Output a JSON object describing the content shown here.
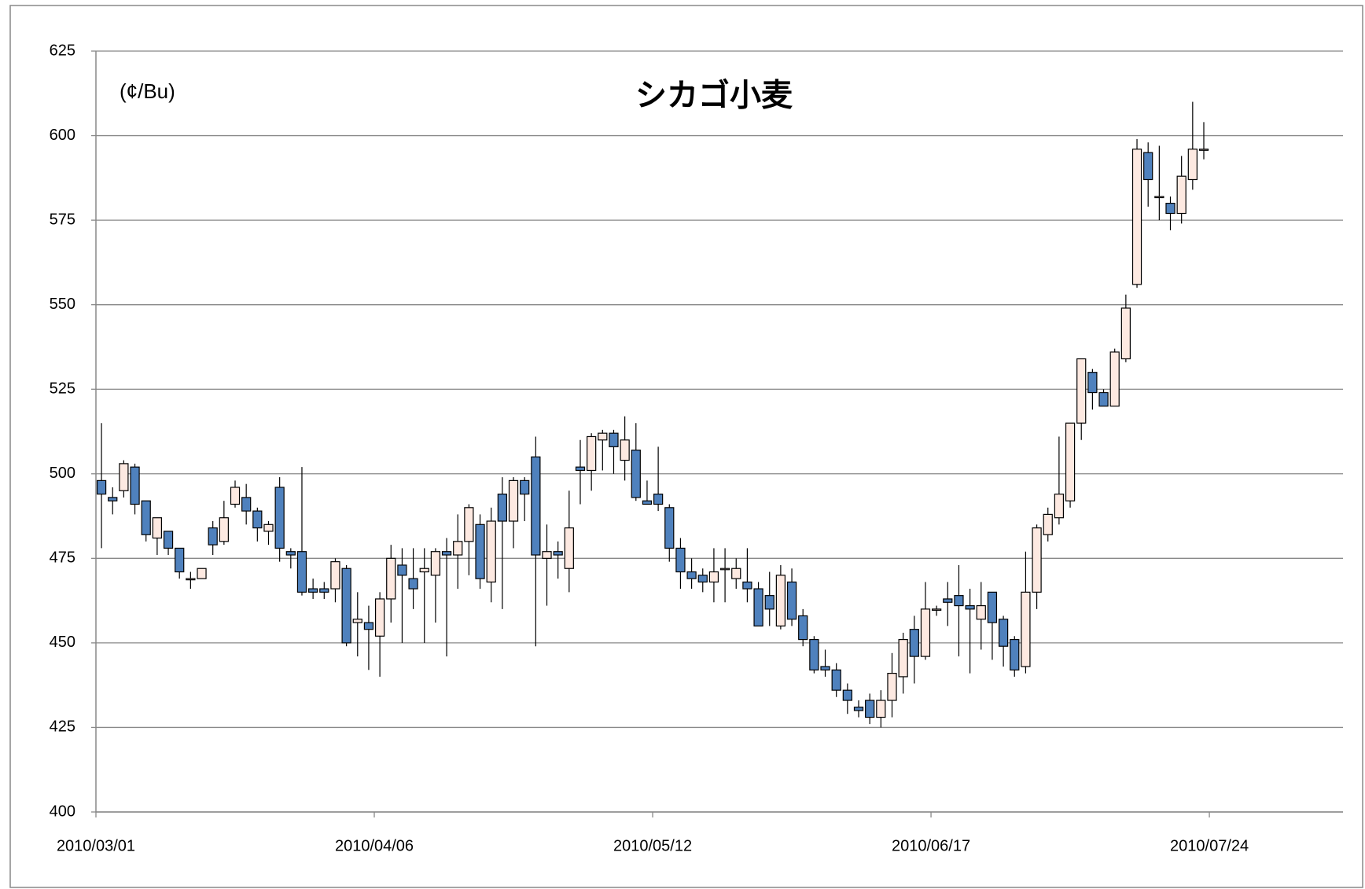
{
  "chart_data": {
    "type": "candlestick",
    "title": "シカゴ小麦",
    "annotation": "(¢/Bu)",
    "categories": [
      "2010/03/01",
      null,
      null,
      null,
      null,
      null,
      null,
      null,
      null,
      null,
      null,
      null,
      null,
      null,
      null,
      null,
      null,
      null,
      null,
      null,
      null,
      null,
      null,
      null,
      null,
      "2010/04/06",
      null,
      null,
      null,
      null,
      null,
      null,
      null,
      null,
      null,
      null,
      null,
      null,
      null,
      null,
      null,
      null,
      null,
      null,
      null,
      null,
      null,
      null,
      null,
      null,
      "2010/05/12",
      null,
      null,
      null,
      null,
      null,
      null,
      null,
      null,
      null,
      null,
      null,
      null,
      null,
      null,
      null,
      null,
      null,
      null,
      null,
      null,
      null,
      null,
      null,
      null,
      "2010/06/17",
      null,
      null,
      null,
      null,
      null,
      null,
      null,
      null,
      null,
      null,
      null,
      null,
      null,
      null,
      null,
      null,
      null,
      null,
      null,
      null,
      null,
      null,
      null,
      null,
      "2010/07/24",
      null,
      null,
      null,
      null,
      null,
      null,
      null,
      null,
      null,
      null,
      null
    ],
    "open": [
      498,
      493,
      495,
      502,
      492,
      481,
      483,
      478,
      469,
      469,
      484,
      480,
      491,
      493,
      489,
      483,
      496,
      477,
      477,
      466,
      466,
      466,
      472,
      456,
      456,
      452,
      463,
      473,
      469,
      471,
      470,
      477,
      476,
      480,
      485,
      468,
      494,
      486,
      498,
      505,
      475,
      477,
      472,
      502,
      501,
      510,
      512,
      504,
      507,
      492,
      494,
      490,
      478,
      471,
      470,
      468,
      472,
      469,
      468,
      466,
      464,
      455,
      468,
      458,
      451,
      443,
      442,
      436,
      431,
      433,
      428,
      433,
      440,
      454,
      446,
      460,
      463,
      464,
      461,
      457,
      465,
      457,
      451,
      443,
      465,
      482,
      487,
      492,
      515,
      530,
      524,
      520,
      534,
      556,
      595,
      582,
      580,
      577,
      587,
      596,
      null,
      null,
      null,
      null,
      null,
      null,
      null,
      null,
      null,
      null,
      null,
      null
    ],
    "high": [
      515,
      496,
      504,
      503,
      492,
      487,
      483,
      478,
      471,
      472,
      486,
      492,
      498,
      497,
      490,
      486,
      499,
      478,
      502,
      469,
      468,
      475,
      473,
      465,
      461,
      465,
      479,
      478,
      478,
      478,
      478,
      481,
      488,
      491,
      488,
      490,
      499,
      499,
      499,
      511,
      485,
      480,
      495,
      510,
      512,
      513,
      513,
      517,
      515,
      498,
      508,
      491,
      481,
      475,
      472,
      478,
      478,
      475,
      478,
      468,
      471,
      473,
      472,
      460,
      452,
      448,
      444,
      438,
      433,
      435,
      436,
      447,
      453,
      458,
      468,
      461,
      468,
      473,
      466,
      468,
      465,
      458,
      452,
      477,
      485,
      490,
      511,
      515,
      534,
      531,
      525,
      537,
      553,
      599,
      598,
      597,
      582,
      594,
      610,
      604,
      null,
      null,
      null,
      null,
      null,
      null,
      null,
      null,
      null,
      null,
      null,
      null
    ],
    "low": [
      478,
      488,
      493,
      488,
      480,
      476,
      476,
      469,
      466,
      469,
      476,
      479,
      490,
      485,
      480,
      479,
      474,
      472,
      464,
      463,
      463,
      462,
      449,
      446,
      442,
      440,
      456,
      450,
      460,
      450,
      456,
      446,
      466,
      470,
      466,
      462,
      460,
      478,
      486,
      449,
      461,
      469,
      465,
      491,
      495,
      501,
      500,
      498,
      492,
      491,
      489,
      474,
      466,
      466,
      465,
      462,
      462,
      466,
      462,
      455,
      455,
      454,
      455,
      449,
      441,
      440,
      434,
      429,
      428,
      426,
      425,
      428,
      435,
      438,
      445,
      458,
      455,
      446,
      441,
      448,
      445,
      443,
      440,
      441,
      460,
      480,
      485,
      490,
      510,
      519,
      520,
      520,
      533,
      555,
      579,
      575,
      572,
      574,
      584,
      593,
      null,
      null,
      null,
      null,
      null,
      null,
      null,
      null,
      null,
      null,
      null,
      null
    ],
    "close": [
      494,
      492,
      503,
      491,
      482,
      487,
      478,
      471,
      469,
      472,
      479,
      487,
      496,
      489,
      484,
      485,
      478,
      476,
      465,
      465,
      465,
      474,
      450,
      457,
      454,
      463,
      475,
      470,
      466,
      472,
      477,
      476,
      480,
      490,
      469,
      486,
      486,
      498,
      494,
      476,
      477,
      476,
      484,
      501,
      511,
      512,
      508,
      510,
      493,
      491,
      491,
      478,
      471,
      469,
      468,
      471,
      472,
      472,
      466,
      455,
      460,
      470,
      457,
      451,
      442,
      442,
      436,
      433,
      430,
      428,
      433,
      441,
      451,
      446,
      460,
      460,
      462,
      461,
      460,
      461,
      456,
      449,
      442,
      465,
      484,
      488,
      494,
      515,
      534,
      524,
      520,
      536,
      549,
      596,
      587,
      582,
      577,
      588,
      596,
      596,
      null,
      null,
      null,
      null,
      null,
      null,
      null,
      null,
      null,
      null,
      null,
      null
    ],
    "up_color": "#fde9e1",
    "down_color": "#4f81bd",
    "ylim": [
      400,
      625
    ],
    "yticks": [
      400,
      425,
      450,
      475,
      500,
      525,
      550,
      575,
      600,
      625
    ],
    "grid": true
  }
}
